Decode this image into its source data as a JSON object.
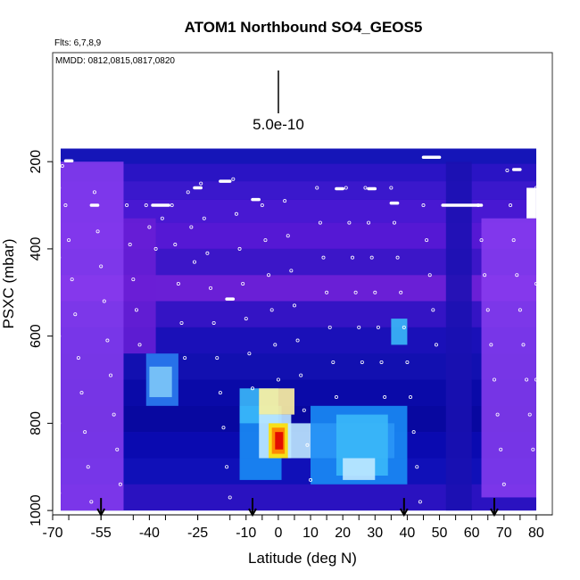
{
  "chart_data": {
    "type": "heatmap",
    "title": "ATOM1 Northbound SO4_GEOS5",
    "flights_label": "Flts: 6,7,8,9",
    "dates_label": "MMDD: 0812,0815,0817,0820",
    "xlabel": "Latitude (deg N)",
    "ylabel": "PSXC (mbar)",
    "xlim": [
      -70,
      85
    ],
    "ylim": [
      1010,
      -50
    ],
    "x_ticks": [
      "-70",
      "-55",
      "-40",
      "-25",
      "-10",
      "0",
      "10",
      "20",
      "30",
      "40",
      "50",
      "60",
      "70",
      "80"
    ],
    "x_tick_values": [
      -70,
      -55,
      -40,
      -25,
      -10,
      0,
      10,
      20,
      30,
      40,
      50,
      60,
      70,
      80
    ],
    "y_ticks": [
      "200",
      "400",
      "600",
      "800",
      "1000"
    ],
    "y_tick_values": [
      200,
      400,
      600,
      800,
      1000
    ],
    "scale_bar_label": "5.0e-10",
    "colormap": [
      "#6a1fd6",
      "#8a3df0",
      "#3a14c8",
      "#0a0ab0",
      "#0000c8",
      "#0a3cf0",
      "#1a8cf5",
      "#3ab8f8",
      "#bfe8ff",
      "#ffffff",
      "#ffe000",
      "#ff8000",
      "#e00000"
    ],
    "data_extent": {
      "lat": [
        -67.5,
        80
      ],
      "pres": [
        170,
        1000
      ]
    },
    "pressure_levels": [
      {
        "pres": 185,
        "color": "#1515b8"
      },
      {
        "pres": 225,
        "color": "#2a14c4"
      },
      {
        "pres": 265,
        "color": "#3a18cc"
      },
      {
        "pres": 310,
        "color": "#4818d2"
      },
      {
        "pres": 370,
        "color": "#5518d4"
      },
      {
        "pres": 430,
        "color": "#3c16c8"
      },
      {
        "pres": 490,
        "color": "#6a1fd6"
      },
      {
        "pres": 550,
        "color": "#3414c4"
      },
      {
        "pres": 610,
        "color": "#1a10b8"
      },
      {
        "pres": 670,
        "color": "#1210b0"
      },
      {
        "pres": 730,
        "color": "#0a0aa8"
      },
      {
        "pres": 790,
        "color": "#0808a0"
      },
      {
        "pres": 850,
        "color": "#0a0ab0"
      },
      {
        "pres": 910,
        "color": "#1010b8"
      },
      {
        "pres": 970,
        "color": "#2a12c0"
      }
    ],
    "lat_bands": [
      {
        "lat": [
          -67.5,
          -48
        ],
        "color": "#8a3df0",
        "pres": [
          200,
          1000
        ]
      },
      {
        "lat": [
          63,
          80
        ],
        "color": "#8a3df0",
        "pres": [
          330,
          970
        ]
      },
      {
        "lat": [
          -48,
          -38
        ],
        "color": "#6a1fd6",
        "pres": [
          330,
          640
        ]
      },
      {
        "lat": [
          52,
          60
        ],
        "color": "#1a10b0",
        "pres": [
          200,
          1000
        ]
      }
    ],
    "features": [
      {
        "lat": [
          -41,
          -31
        ],
        "pres": [
          640,
          760
        ],
        "color": "#2a7cf0"
      },
      {
        "lat": [
          -40,
          -33
        ],
        "pres": [
          670,
          740
        ],
        "color": "#7ec8f8"
      },
      {
        "lat": [
          -12,
          1
        ],
        "pres": [
          760,
          930
        ],
        "color": "#1a8cf5"
      },
      {
        "lat": [
          -12,
          0
        ],
        "pres": [
          720,
          800
        ],
        "color": "#3ab8f8"
      },
      {
        "lat": [
          -6,
          5
        ],
        "pres": [
          720,
          780
        ],
        "color": "#fff3a0"
      },
      {
        "lat": [
          -6,
          4
        ],
        "pres": [
          780,
          880
        ],
        "color": "#bfe8ff"
      },
      {
        "lat": [
          -3,
          3
        ],
        "pres": [
          800,
          880
        ],
        "color": "#ffe000"
      },
      {
        "lat": [
          -2,
          2
        ],
        "pres": [
          810,
          870
        ],
        "color": "#ff8000"
      },
      {
        "lat": [
          -1,
          1.5
        ],
        "pres": [
          820,
          860
        ],
        "color": "#e00000"
      },
      {
        "lat": [
          3,
          36
        ],
        "pres": [
          800,
          880
        ],
        "color": "#bfe8ff"
      },
      {
        "lat": [
          10,
          40
        ],
        "pres": [
          760,
          940
        ],
        "color": "#1a8cf5"
      },
      {
        "lat": [
          18,
          34
        ],
        "pres": [
          780,
          920
        ],
        "color": "#3ab8f8"
      },
      {
        "lat": [
          20,
          30
        ],
        "pres": [
          880,
          930
        ],
        "color": "#bfe8ff"
      },
      {
        "lat": [
          35,
          40
        ],
        "pres": [
          560,
          620
        ],
        "color": "#3ab8f8"
      }
    ],
    "flight_legs_lat": [
      -55,
      -8,
      39,
      67
    ],
    "points": [
      [
        -67,
        210
      ],
      [
        -66,
        300
      ],
      [
        -65,
        380
      ],
      [
        -64,
        470
      ],
      [
        -63,
        550
      ],
      [
        -62,
        650
      ],
      [
        -61,
        730
      ],
      [
        -60,
        820
      ],
      [
        -59,
        900
      ],
      [
        -58,
        980
      ],
      [
        -57,
        270
      ],
      [
        -56,
        360
      ],
      [
        -55,
        440
      ],
      [
        -54,
        520
      ],
      [
        -53,
        610
      ],
      [
        -52,
        690
      ],
      [
        -51,
        780
      ],
      [
        -50,
        860
      ],
      [
        -49,
        940
      ],
      [
        -47,
        300
      ],
      [
        -46,
        390
      ],
      [
        -45,
        470
      ],
      [
        -44,
        540
      ],
      [
        -43,
        620
      ],
      [
        -41,
        300
      ],
      [
        -40,
        350
      ],
      [
        -38,
        400
      ],
      [
        -36,
        330
      ],
      [
        -33,
        300
      ],
      [
        -32,
        390
      ],
      [
        -31,
        480
      ],
      [
        -30,
        570
      ],
      [
        -29,
        650
      ],
      [
        -28,
        270
      ],
      [
        -27,
        350
      ],
      [
        -26,
        430
      ],
      [
        -24,
        250
      ],
      [
        -23,
        330
      ],
      [
        -22,
        410
      ],
      [
        -21,
        490
      ],
      [
        -20,
        570
      ],
      [
        -19,
        650
      ],
      [
        -18,
        730
      ],
      [
        -17,
        810
      ],
      [
        -16,
        900
      ],
      [
        -15,
        970
      ],
      [
        -14,
        240
      ],
      [
        -13,
        320
      ],
      [
        -12,
        400
      ],
      [
        -11,
        480
      ],
      [
        -10,
        560
      ],
      [
        -9,
        640
      ],
      [
        -8,
        720
      ],
      [
        -5,
        300
      ],
      [
        -4,
        380
      ],
      [
        -3,
        460
      ],
      [
        -2,
        540
      ],
      [
        -1,
        620
      ],
      [
        0,
        700
      ],
      [
        2,
        290
      ],
      [
        3,
        370
      ],
      [
        4,
        450
      ],
      [
        5,
        530
      ],
      [
        6,
        610
      ],
      [
        7,
        690
      ],
      [
        8,
        770
      ],
      [
        9,
        850
      ],
      [
        10,
        930
      ],
      [
        12,
        260
      ],
      [
        13,
        340
      ],
      [
        14,
        420
      ],
      [
        15,
        500
      ],
      [
        16,
        580
      ],
      [
        17,
        660
      ],
      [
        18,
        740
      ],
      [
        21,
        260
      ],
      [
        22,
        340
      ],
      [
        23,
        420
      ],
      [
        24,
        500
      ],
      [
        25,
        580
      ],
      [
        26,
        660
      ],
      [
        27,
        260
      ],
      [
        28,
        340
      ],
      [
        29,
        420
      ],
      [
        30,
        500
      ],
      [
        31,
        580
      ],
      [
        32,
        660
      ],
      [
        33,
        740
      ],
      [
        35,
        260
      ],
      [
        36,
        340
      ],
      [
        37,
        420
      ],
      [
        38,
        500
      ],
      [
        39,
        580
      ],
      [
        40,
        660
      ],
      [
        41,
        740
      ],
      [
        42,
        820
      ],
      [
        43,
        900
      ],
      [
        44,
        980
      ],
      [
        45,
        300
      ],
      [
        46,
        380
      ],
      [
        47,
        460
      ],
      [
        48,
        540
      ],
      [
        49,
        620
      ],
      [
        62,
        300
      ],
      [
        63,
        380
      ],
      [
        64,
        460
      ],
      [
        65,
        540
      ],
      [
        66,
        620
      ],
      [
        67,
        700
      ],
      [
        68,
        780
      ],
      [
        69,
        860
      ],
      [
        70,
        940
      ],
      [
        71,
        220
      ],
      [
        72,
        300
      ],
      [
        73,
        380
      ],
      [
        74,
        460
      ],
      [
        75,
        540
      ],
      [
        76,
        620
      ],
      [
        77,
        700
      ],
      [
        78,
        780
      ],
      [
        79,
        860
      ],
      [
        -68,
        260
      ],
      [
        -68,
        420
      ],
      [
        -68,
        600
      ],
      [
        -68,
        800
      ],
      [
        -68,
        960
      ],
      [
        80,
        260
      ],
      [
        80,
        480
      ],
      [
        80,
        700
      ]
    ],
    "segments": [
      [
        -66,
        -64,
        198
      ],
      [
        -39,
        -34,
        300
      ],
      [
        -26,
        -24,
        260
      ],
      [
        -18,
        -15,
        245
      ],
      [
        -8,
        -6,
        287
      ],
      [
        -16,
        -14,
        515
      ],
      [
        18,
        20,
        262
      ],
      [
        28,
        30,
        262
      ],
      [
        35,
        37,
        295
      ],
      [
        45,
        50,
        190
      ],
      [
        51,
        63,
        300
      ],
      [
        73,
        75,
        218
      ],
      [
        -58,
        -56,
        300
      ]
    ]
  }
}
